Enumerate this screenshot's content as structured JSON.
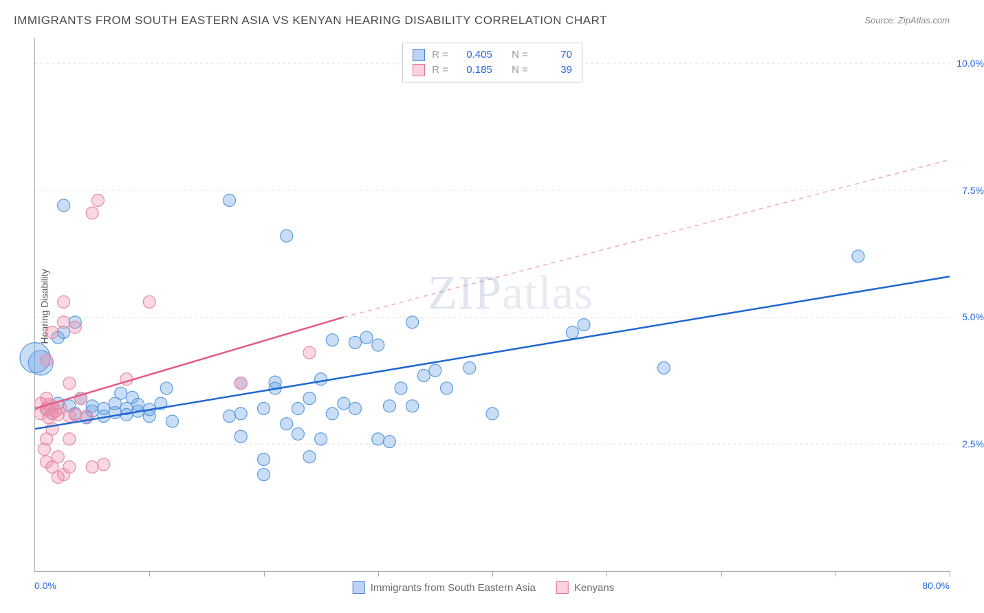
{
  "title": "IMMIGRANTS FROM SOUTH EASTERN ASIA VS KENYAN HEARING DISABILITY CORRELATION CHART",
  "source_label": "Source:",
  "source_value": "ZipAtlas.com",
  "ylabel": "Hearing Disability",
  "watermark_bold": "ZIP",
  "watermark_light": "atlas",
  "chart": {
    "type": "scatter",
    "background_color": "#ffffff",
    "grid_color": "#dddddd",
    "axis_color": "#aaaaaa",
    "text_color": "#555555",
    "value_color": "#2266dd",
    "xlim": [
      0,
      80
    ],
    "ylim": [
      0,
      10.5
    ],
    "x_min_label": "0.0%",
    "x_max_label": "80.0%",
    "y_ticks": [
      2.5,
      5.0,
      7.5,
      10.0
    ],
    "y_tick_labels": [
      "2.5%",
      "5.0%",
      "7.5%",
      "10.0%"
    ],
    "x_tick_positions": [
      0,
      10,
      20,
      30,
      40,
      50,
      60,
      70,
      80
    ],
    "title_fontsize": 17,
    "label_fontsize": 14,
    "series": [
      {
        "name": "Immigrants from South Eastern Asia",
        "color_fill": "rgba(100,160,230,0.35)",
        "color_stroke": "#5a9be0",
        "marker_radius": 9,
        "R": "0.405",
        "N": "70",
        "trend": {
          "x1": 0,
          "y1": 2.8,
          "x2": 80,
          "y2": 5.8,
          "color": "#1f66d0",
          "width": 2.5,
          "dash": "none"
        },
        "points": [
          [
            0,
            4.2,
            22
          ],
          [
            0.5,
            4.1,
            18
          ],
          [
            1,
            3.2
          ],
          [
            1.5,
            3.1
          ],
          [
            2,
            3.3
          ],
          [
            2,
            4.6
          ],
          [
            2.5,
            4.7
          ],
          [
            2.5,
            7.2
          ],
          [
            3,
            3.25
          ],
          [
            3.5,
            3.1
          ],
          [
            3.5,
            4.9
          ],
          [
            4,
            3.4
          ],
          [
            4.5,
            3.02
          ],
          [
            5,
            3.15
          ],
          [
            5,
            3.25
          ],
          [
            6,
            3.2
          ],
          [
            6,
            3.05
          ],
          [
            7,
            3.12
          ],
          [
            7,
            3.3
          ],
          [
            7.5,
            3.5
          ],
          [
            8,
            3.2
          ],
          [
            8,
            3.08
          ],
          [
            8.5,
            3.42
          ],
          [
            9,
            3.15
          ],
          [
            9,
            3.28
          ],
          [
            10,
            3.18
          ],
          [
            10,
            3.05
          ],
          [
            11,
            3.3
          ],
          [
            11.5,
            3.6
          ],
          [
            12,
            2.95
          ],
          [
            17,
            7.3
          ],
          [
            17,
            3.05
          ],
          [
            18,
            3.7
          ],
          [
            18,
            2.65
          ],
          [
            18,
            3.1
          ],
          [
            20,
            3.2
          ],
          [
            20,
            1.9
          ],
          [
            20,
            2.2
          ],
          [
            21,
            3.72
          ],
          [
            21,
            3.6
          ],
          [
            22,
            2.9
          ],
          [
            22,
            6.6
          ],
          [
            23,
            2.7
          ],
          [
            23,
            3.2
          ],
          [
            24,
            3.4
          ],
          [
            24,
            2.25
          ],
          [
            25,
            3.78
          ],
          [
            25,
            2.6
          ],
          [
            26,
            3.1
          ],
          [
            26,
            4.55
          ],
          [
            27,
            3.3
          ],
          [
            28,
            3.2
          ],
          [
            28,
            4.5
          ],
          [
            29,
            4.6
          ],
          [
            30,
            2.6
          ],
          [
            30,
            4.45
          ],
          [
            31,
            3.25
          ],
          [
            31,
            2.55
          ],
          [
            32,
            3.6
          ],
          [
            33,
            4.9
          ],
          [
            33,
            3.25
          ],
          [
            34,
            3.85
          ],
          [
            35,
            3.95
          ],
          [
            36,
            3.6
          ],
          [
            38,
            4.0
          ],
          [
            40,
            3.1
          ],
          [
            47,
            4.7
          ],
          [
            48,
            4.85
          ],
          [
            55,
            4.0
          ],
          [
            72,
            6.2
          ]
        ]
      },
      {
        "name": "Kenyans",
        "color_fill": "rgba(240,140,170,0.35)",
        "color_stroke": "#e88aa8",
        "marker_radius": 9,
        "R": "0.185",
        "N": "39",
        "trend_solid": {
          "x1": 0,
          "y1": 3.2,
          "x2": 27,
          "y2": 5.0,
          "color": "#e25b88",
          "width": 2.5,
          "dash": "none"
        },
        "trend_dash": {
          "x1": 27,
          "y1": 5.0,
          "x2": 80,
          "y2": 8.1,
          "color": "#f2a8c0",
          "width": 1.5,
          "dash": "6,6"
        },
        "points": [
          [
            0.5,
            3.1
          ],
          [
            0.5,
            3.3
          ],
          [
            0.8,
            2.4
          ],
          [
            1,
            2.15
          ],
          [
            1,
            2.6
          ],
          [
            1,
            3.18
          ],
          [
            1,
            3.4
          ],
          [
            1,
            4.15
          ],
          [
            1.2,
            3.02
          ],
          [
            1.2,
            3.28
          ],
          [
            1.5,
            2.05
          ],
          [
            1.5,
            2.8
          ],
          [
            1.5,
            3.1
          ],
          [
            1.5,
            3.25
          ],
          [
            1.5,
            4.7
          ],
          [
            1.8,
            3.15
          ],
          [
            2,
            1.85
          ],
          [
            2,
            2.25
          ],
          [
            2,
            3.08
          ],
          [
            2.2,
            3.22
          ],
          [
            2.5,
            1.9
          ],
          [
            2.5,
            4.9
          ],
          [
            2.5,
            5.3
          ],
          [
            3,
            2.05
          ],
          [
            3,
            2.6
          ],
          [
            3,
            3.05
          ],
          [
            3,
            3.7
          ],
          [
            3.5,
            3.08
          ],
          [
            3.5,
            4.8
          ],
          [
            4,
            3.4
          ],
          [
            4.5,
            3.05
          ],
          [
            5,
            7.05
          ],
          [
            5,
            2.05
          ],
          [
            5.5,
            7.3
          ],
          [
            6,
            2.1
          ],
          [
            8,
            3.78
          ],
          [
            10,
            5.3
          ],
          [
            18,
            3.7
          ],
          [
            24,
            4.3
          ]
        ]
      }
    ],
    "stats_labels": {
      "R": "R =",
      "N": "N ="
    },
    "legend_series1": "Immigrants from South Eastern Asia",
    "legend_series2": "Kenyans"
  }
}
